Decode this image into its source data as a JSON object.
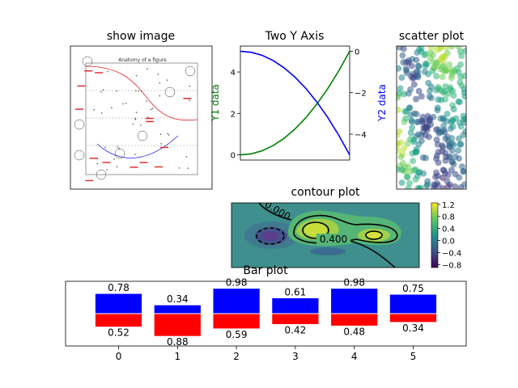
{
  "colors": {
    "y1": "#008000",
    "y2": "#0000ff",
    "bar_pos": "#0000ff",
    "bar_neg": "#ff0000",
    "contour_bg": "#3e8f8d"
  },
  "chart_data": [
    {
      "type": "other",
      "title": "show image",
      "image_title": "Anatomy of a figure",
      "axes": "off"
    },
    {
      "type": "line",
      "title": "Two Y Axis",
      "ylabel": "Y1 data",
      "y2label": "Y2 data",
      "xlim": [
        0,
        1
      ],
      "ylim": [
        -0.25,
        5.25
      ],
      "y2lim": [
        -5.25,
        0.25
      ],
      "yticks": [
        "0",
        "2",
        "4"
      ],
      "y2ticks": [
        "0",
        "−2",
        "−4"
      ],
      "series": [
        {
          "axis": "left",
          "color": "green",
          "x": [
            0,
            0.1,
            0.2,
            0.3,
            0.4,
            0.5,
            0.6,
            0.7,
            0.8,
            0.9,
            1.0
          ],
          "values": [
            0,
            0.05,
            0.2,
            0.45,
            0.8,
            1.25,
            1.8,
            2.45,
            3.2,
            4.05,
            5.0
          ]
        },
        {
          "axis": "right",
          "color": "blue",
          "x": [
            0,
            0.1,
            0.2,
            0.3,
            0.4,
            0.5,
            0.6,
            0.7,
            0.8,
            0.9,
            1.0
          ],
          "values": [
            0,
            -0.05,
            -0.2,
            -0.45,
            -0.8,
            -1.25,
            -1.8,
            -2.45,
            -3.2,
            -4.05,
            -5.0
          ]
        }
      ]
    },
    {
      "type": "scatter",
      "title": "scatter plot",
      "axes": "no ticks",
      "xlim": [
        0,
        1
      ],
      "ylim": [
        0,
        1
      ],
      "n_points": 300,
      "colormap": "viridis"
    },
    {
      "type": "heatmap",
      "title": "contour plot",
      "colorbar_ticks": [
        "1.2",
        "0.8",
        "0.4",
        "0.0",
        "−0.4",
        "−0.8"
      ],
      "colorbar_range": [
        -0.9,
        1.25
      ],
      "contour_labels": [
        "0.000",
        "0.400"
      ]
    },
    {
      "type": "bar",
      "title": "Bar plot",
      "categories": [
        "0",
        "1",
        "2",
        "3",
        "4",
        "5"
      ],
      "series": [
        {
          "color": "blue",
          "values": [
            0.78,
            0.34,
            0.98,
            0.61,
            0.98,
            0.75
          ]
        },
        {
          "color": "red",
          "values": [
            -0.52,
            -0.88,
            -0.59,
            -0.42,
            -0.48,
            -0.34
          ]
        }
      ],
      "value_labels_top": [
        "0.78",
        "0.34",
        "0.98",
        "0.61",
        "0.98",
        "0.75"
      ],
      "value_labels_bottom": [
        "0.52",
        "0.88",
        "0.59",
        "0.42",
        "0.48",
        "0.34"
      ],
      "ylim": [
        -1.25,
        1.25
      ],
      "xlim": [
        -0.9,
        5.9
      ]
    }
  ]
}
